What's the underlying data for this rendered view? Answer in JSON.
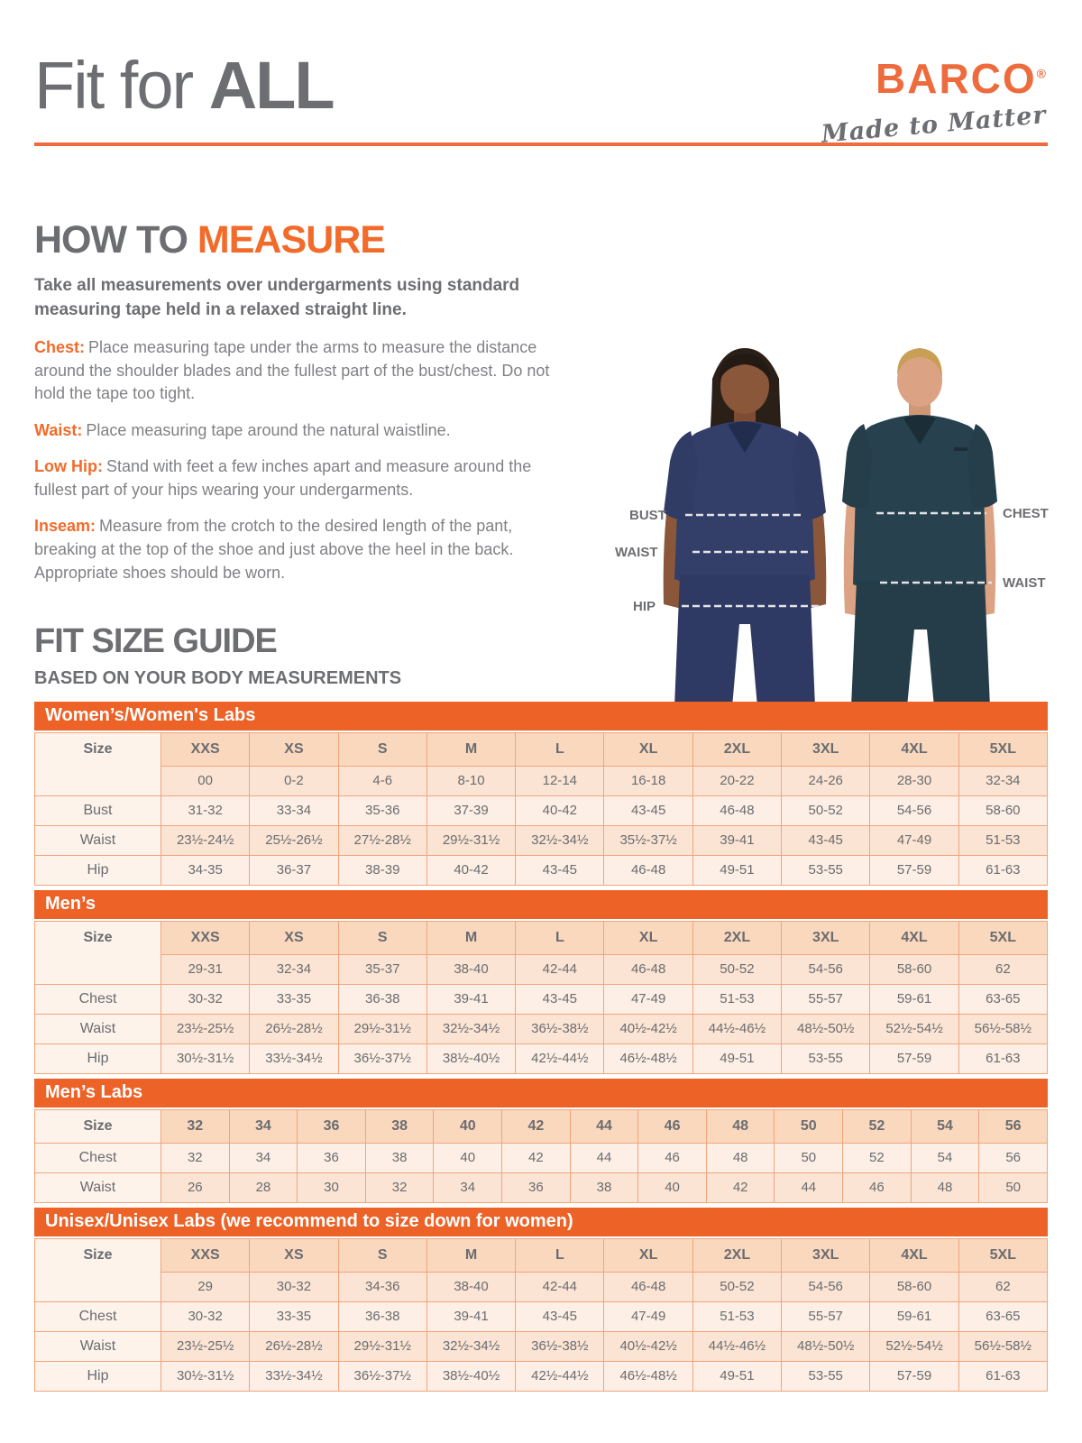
{
  "header": {
    "title_light": "Fit for ",
    "title_bold": "ALL"
  },
  "brand": {
    "name": "BARCO",
    "registered": "®",
    "tagline": "Made to Matter"
  },
  "how_to_measure": {
    "heading_gray": "HOW TO ",
    "heading_orange": "MEASURE",
    "intro": "Take all measurements over undergarments using standard measuring tape held in a relaxed straight line.",
    "items": [
      {
        "label": "Chest:",
        "text": "Place measuring tape under the arms to measure the distance around the shoulder blades and the fullest part of the bust/chest. Do not hold the tape too tight."
      },
      {
        "label": "Waist:",
        "text": "Place measuring tape around the natural waistline."
      },
      {
        "label": "Low Hip:",
        "text": "Stand with feet a few inches apart and measure around the fullest part of your hips wearing your undergarments."
      },
      {
        "label": "Inseam:",
        "text": "Measure from the crotch to the desired length of the pant, breaking at the top of the shoe and just above the heel in the back. Appropriate shoes should be worn."
      }
    ]
  },
  "figure_labels": {
    "bust": "BUST",
    "waist_left": "WAIST",
    "hip": "HIP",
    "chest": "CHEST",
    "waist_right": "WAIST"
  },
  "size_guide": {
    "heading": "FIT SIZE GUIDE",
    "subheading": "BASED ON YOUR BODY MEASUREMENTS",
    "tables": [
      {
        "title": "Women’s/Women's Labs",
        "columns": [
          "Size",
          "XXS",
          "XS",
          "S",
          "M",
          "L",
          "XL",
          "2XL",
          "3XL",
          "4XL",
          "5XL"
        ],
        "numeric_row": [
          "00",
          "0-2",
          "4-6",
          "8-10",
          "12-14",
          "16-18",
          "20-22",
          "24-26",
          "28-30",
          "32-34"
        ],
        "rows": [
          {
            "label": "Bust",
            "values": [
              "31-32",
              "33-34",
              "35-36",
              "37-39",
              "40-42",
              "43-45",
              "46-48",
              "50-52",
              "54-56",
              "58-60"
            ]
          },
          {
            "label": "Waist",
            "values": [
              "23½-24½",
              "25½-26½",
              "27½-28½",
              "29½-31½",
              "32½-34½",
              "35½-37½",
              "39-41",
              "43-45",
              "47-49",
              "51-53"
            ]
          },
          {
            "label": "Hip",
            "values": [
              "34-35",
              "36-37",
              "38-39",
              "40-42",
              "43-45",
              "46-48",
              "49-51",
              "53-55",
              "57-59",
              "61-63"
            ]
          }
        ]
      },
      {
        "title": "Men’s",
        "columns": [
          "Size",
          "XXS",
          "XS",
          "S",
          "M",
          "L",
          "XL",
          "2XL",
          "3XL",
          "4XL",
          "5XL"
        ],
        "numeric_row": [
          "29-31",
          "32-34",
          "35-37",
          "38-40",
          "42-44",
          "46-48",
          "50-52",
          "54-56",
          "58-60",
          "62"
        ],
        "rows": [
          {
            "label": "Chest",
            "values": [
              "30-32",
              "33-35",
              "36-38",
              "39-41",
              "43-45",
              "47-49",
              "51-53",
              "55-57",
              "59-61",
              "63-65"
            ]
          },
          {
            "label": "Waist",
            "values": [
              "23½-25½",
              "26½-28½",
              "29½-31½",
              "32½-34½",
              "36½-38½",
              "40½-42½",
              "44½-46½",
              "48½-50½",
              "52½-54½",
              "56½-58½"
            ]
          },
          {
            "label": "Hip",
            "values": [
              "30½-31½",
              "33½-34½",
              "36½-37½",
              "38½-40½",
              "42½-44½",
              "46½-48½",
              "49-51",
              "53-55",
              "57-59",
              "61-63"
            ]
          }
        ]
      },
      {
        "title": "Men’s Labs",
        "columns": [
          "Size",
          "32",
          "34",
          "36",
          "38",
          "40",
          "42",
          "44",
          "46",
          "48",
          "50",
          "52",
          "54",
          "56"
        ],
        "numeric_row": null,
        "rows": [
          {
            "label": "Chest",
            "values": [
              "32",
              "34",
              "36",
              "38",
              "40",
              "42",
              "44",
              "46",
              "48",
              "50",
              "52",
              "54",
              "56"
            ]
          },
          {
            "label": "Waist",
            "values": [
              "26",
              "28",
              "30",
              "32",
              "34",
              "36",
              "38",
              "40",
              "42",
              "44",
              "46",
              "48",
              "50"
            ]
          }
        ]
      },
      {
        "title": "Unisex/Unisex Labs (we recommend to size down for women)",
        "columns": [
          "Size",
          "XXS",
          "XS",
          "S",
          "M",
          "L",
          "XL",
          "2XL",
          "3XL",
          "4XL",
          "5XL"
        ],
        "numeric_row": [
          "29",
          "30-32",
          "34-36",
          "38-40",
          "42-44",
          "46-48",
          "50-52",
          "54-56",
          "58-60",
          "62"
        ],
        "rows": [
          {
            "label": "Chest",
            "values": [
              "30-32",
              "33-35",
              "36-38",
              "39-41",
              "43-45",
              "47-49",
              "51-53",
              "55-57",
              "59-61",
              "63-65"
            ]
          },
          {
            "label": "Waist",
            "values": [
              "23½-25½",
              "26½-28½",
              "29½-31½",
              "32½-34½",
              "36½-38½",
              "40½-42½",
              "44½-46½",
              "48½-50½",
              "52½-54½",
              "56½-58½"
            ]
          },
          {
            "label": "Hip",
            "values": [
              "30½-31½",
              "33½-34½",
              "36½-37½",
              "38½-40½",
              "42½-44½",
              "46½-48½",
              "49-51",
              "53-55",
              "57-59",
              "61-63"
            ]
          }
        ]
      }
    ]
  },
  "colors": {
    "brand_orange": "#ed6b3c",
    "bar_orange": "#ec6227",
    "heading_gray": "#6d6e71",
    "body_gray": "#808184",
    "table_border": "#f2a47b",
    "cell_peach_header": "#fad8be",
    "cell_dark": "#fbe4d3",
    "cell_light": "#fdefe5",
    "cell_label": "#fdf3eb",
    "scrub_navy": "#333f69",
    "scrub_teal": "#27414e"
  }
}
